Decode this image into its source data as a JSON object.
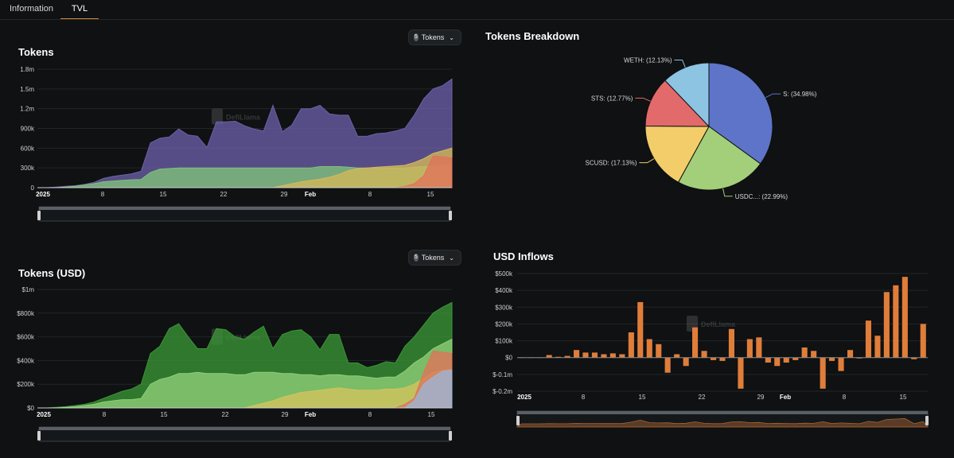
{
  "tabs": [
    {
      "label": "Information"
    },
    {
      "label": "TVL"
    }
  ],
  "watermark": "DefiLlama",
  "selector": {
    "count": "5",
    "label": "Tokens",
    "chevron": "⌄"
  },
  "chart_data": [
    {
      "id": "tokens",
      "type": "area",
      "stacked": false,
      "title": "Tokens",
      "x_tick_labels": [
        "2025",
        "8",
        "15",
        "22",
        "29",
        "Feb",
        "8",
        "15"
      ],
      "y_tick_labels": [
        "0",
        "300k",
        "600k",
        "900k",
        "1.2m",
        "1.5m",
        "1.8m"
      ],
      "ylim": [
        0,
        1800000
      ],
      "series": [
        {
          "name": "S",
          "color": "#6c5fa6",
          "values": [
            0,
            0,
            10000,
            20000,
            30000,
            50000,
            80000,
            140000,
            170000,
            190000,
            210000,
            250000,
            680000,
            750000,
            770000,
            890000,
            800000,
            780000,
            610000,
            1000000,
            1000000,
            1010000,
            940000,
            890000,
            860000,
            1250000,
            850000,
            950000,
            1200000,
            1200000,
            1250000,
            1120000,
            1100000,
            1100000,
            780000,
            780000,
            820000,
            830000,
            860000,
            900000,
            1100000,
            1350000,
            1500000,
            1550000,
            1650000
          ]
        },
        {
          "name": "USDC.e",
          "color": "#7fc37a",
          "values": [
            0,
            0,
            0,
            10000,
            20000,
            40000,
            60000,
            90000,
            100000,
            110000,
            120000,
            125000,
            230000,
            280000,
            290000,
            300000,
            300000,
            300000,
            300000,
            300000,
            300000,
            300000,
            300000,
            300000,
            300000,
            300000,
            300000,
            300000,
            300000,
            300000,
            320000,
            320000,
            320000,
            310000,
            300000,
            300000,
            300000,
            300000,
            300000,
            300000,
            310000,
            320000,
            330000,
            340000,
            350000
          ]
        },
        {
          "name": "SCUSD",
          "color": "#d4b85a",
          "values": [
            0,
            0,
            0,
            0,
            0,
            0,
            0,
            0,
            0,
            0,
            0,
            0,
            0,
            0,
            0,
            0,
            0,
            0,
            0,
            0,
            0,
            0,
            0,
            0,
            0,
            0,
            30000,
            60000,
            90000,
            110000,
            130000,
            160000,
            200000,
            260000,
            290000,
            300000,
            310000,
            320000,
            330000,
            340000,
            380000,
            440000,
            520000,
            560000,
            600000
          ]
        },
        {
          "name": "STS",
          "color": "#e0735a",
          "values": [
            0,
            0,
            0,
            0,
            0,
            0,
            0,
            0,
            0,
            0,
            0,
            0,
            0,
            0,
            0,
            0,
            0,
            0,
            0,
            0,
            0,
            0,
            0,
            0,
            0,
            0,
            0,
            0,
            0,
            0,
            0,
            0,
            0,
            0,
            0,
            0,
            0,
            0,
            0,
            20000,
            60000,
            180000,
            480000,
            470000,
            450000
          ]
        }
      ]
    },
    {
      "id": "tokens_usd",
      "type": "area",
      "stacked": false,
      "title": "Tokens (USD)",
      "x_tick_labels": [
        "2025",
        "8",
        "15",
        "22",
        "29",
        "Feb",
        "8",
        "15"
      ],
      "y_tick_labels": [
        "$0",
        "$200k",
        "$400k",
        "$600k",
        "$800k",
        "$1m"
      ],
      "ylim": [
        0,
        1000000
      ],
      "series": [
        {
          "name": "S",
          "color": "#3a9636",
          "values": [
            0,
            0,
            5000,
            10000,
            20000,
            30000,
            50000,
            80000,
            110000,
            140000,
            160000,
            200000,
            460000,
            520000,
            670000,
            710000,
            600000,
            500000,
            500000,
            670000,
            660000,
            600000,
            580000,
            640000,
            690000,
            500000,
            620000,
            650000,
            660000,
            600000,
            490000,
            620000,
            620000,
            380000,
            380000,
            340000,
            360000,
            390000,
            380000,
            520000,
            600000,
            700000,
            800000,
            850000,
            890000
          ]
        },
        {
          "name": "USDC.e",
          "color": "#8fcf77",
          "values": [
            0,
            0,
            0,
            5000,
            10000,
            20000,
            30000,
            50000,
            60000,
            70000,
            70000,
            80000,
            200000,
            240000,
            260000,
            290000,
            290000,
            300000,
            290000,
            290000,
            290000,
            280000,
            280000,
            300000,
            300000,
            300000,
            290000,
            290000,
            280000,
            280000,
            270000,
            280000,
            280000,
            270000,
            270000,
            260000,
            250000,
            260000,
            260000,
            310000,
            380000,
            430000,
            500000,
            540000,
            580000
          ]
        },
        {
          "name": "SCUSD",
          "color": "#d2c45e",
          "values": [
            0,
            0,
            0,
            0,
            0,
            0,
            0,
            0,
            0,
            0,
            0,
            0,
            0,
            0,
            0,
            0,
            0,
            0,
            0,
            0,
            0,
            0,
            0,
            20000,
            40000,
            60000,
            90000,
            110000,
            130000,
            140000,
            150000,
            160000,
            170000,
            160000,
            150000,
            150000,
            150000,
            160000,
            160000,
            170000,
            200000,
            250000,
            300000,
            320000,
            330000
          ]
        },
        {
          "name": "STS",
          "color": "#e0735a",
          "values": [
            0,
            0,
            0,
            0,
            0,
            0,
            0,
            0,
            0,
            0,
            0,
            0,
            0,
            0,
            0,
            0,
            0,
            0,
            0,
            0,
            0,
            0,
            0,
            0,
            0,
            0,
            0,
            0,
            0,
            0,
            0,
            0,
            0,
            0,
            0,
            0,
            0,
            0,
            0,
            30000,
            80000,
            300000,
            480000,
            470000,
            460000
          ]
        },
        {
          "name": "WETH",
          "color": "#9ab6d8",
          "values": [
            0,
            0,
            0,
            0,
            0,
            0,
            0,
            0,
            0,
            0,
            0,
            0,
            0,
            0,
            0,
            0,
            0,
            0,
            0,
            0,
            0,
            0,
            0,
            0,
            0,
            0,
            0,
            0,
            0,
            0,
            0,
            0,
            0,
            0,
            0,
            0,
            0,
            0,
            0,
            0,
            60000,
            200000,
            260000,
            310000,
            320000
          ]
        }
      ]
    },
    {
      "id": "tokens_breakdown",
      "type": "pie",
      "title": "Tokens Breakdown",
      "slices": [
        {
          "label": "S: (34.98%)",
          "value": 34.98,
          "color": "#5e74c8"
        },
        {
          "label": "USDC...: (22.99%)",
          "value": 22.99,
          "color": "#a4cf7a"
        },
        {
          "label": "SCUSD: (17.13%)",
          "value": 17.13,
          "color": "#f2cd6a"
        },
        {
          "label": "STS: (12.77%)",
          "value": 12.77,
          "color": "#e36a6a"
        },
        {
          "label": "WETH: (12.13%)",
          "value": 12.13,
          "color": "#8cc4e2"
        }
      ]
    },
    {
      "id": "usd_inflows",
      "type": "bar",
      "title": "USD Inflows",
      "x_tick_labels": [
        "2025",
        "8",
        "15",
        "22",
        "29",
        "Feb",
        "8",
        "15"
      ],
      "y_tick_labels": [
        "$-0.2m",
        "$-0.1m",
        "$0",
        "$100k",
        "$200k",
        "$300k",
        "$400k",
        "$500k"
      ],
      "ylim": [
        -200000,
        500000
      ],
      "color": "#e07d3a",
      "values": [
        0,
        0,
        0,
        15000,
        5000,
        10000,
        45000,
        30000,
        30000,
        20000,
        25000,
        20000,
        150000,
        330000,
        110000,
        80000,
        -90000,
        20000,
        -50000,
        180000,
        40000,
        -15000,
        -20000,
        170000,
        -185000,
        110000,
        120000,
        -30000,
        -50000,
        -30000,
        -15000,
        60000,
        40000,
        -185000,
        -20000,
        -80000,
        45000,
        -5000,
        220000,
        130000,
        390000,
        430000,
        480000,
        -10000,
        200000
      ]
    }
  ]
}
